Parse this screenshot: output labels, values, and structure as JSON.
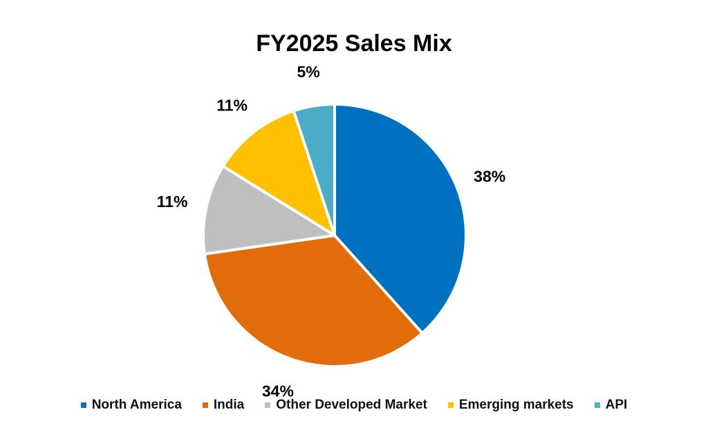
{
  "chart_data": {
    "type": "pie",
    "title": "FY2025 Sales Mix",
    "slices": [
      {
        "label": "North America",
        "value": 38,
        "display": "38%",
        "color": "#0070C0"
      },
      {
        "label": "India",
        "value": 34,
        "display": "34%",
        "color": "#E36C0A"
      },
      {
        "label": "Other Developed Market",
        "value": 11,
        "display": "11%",
        "color": "#BFBFBF"
      },
      {
        "label": "Emerging markets",
        "value": 11,
        "display": "11%",
        "color": "#FFC000"
      },
      {
        "label": "API",
        "value": 5,
        "display": "5%",
        "color": "#4BACC6"
      }
    ],
    "start_angle_deg": 0,
    "direction": "clockwise",
    "legend_position": "bottom"
  }
}
